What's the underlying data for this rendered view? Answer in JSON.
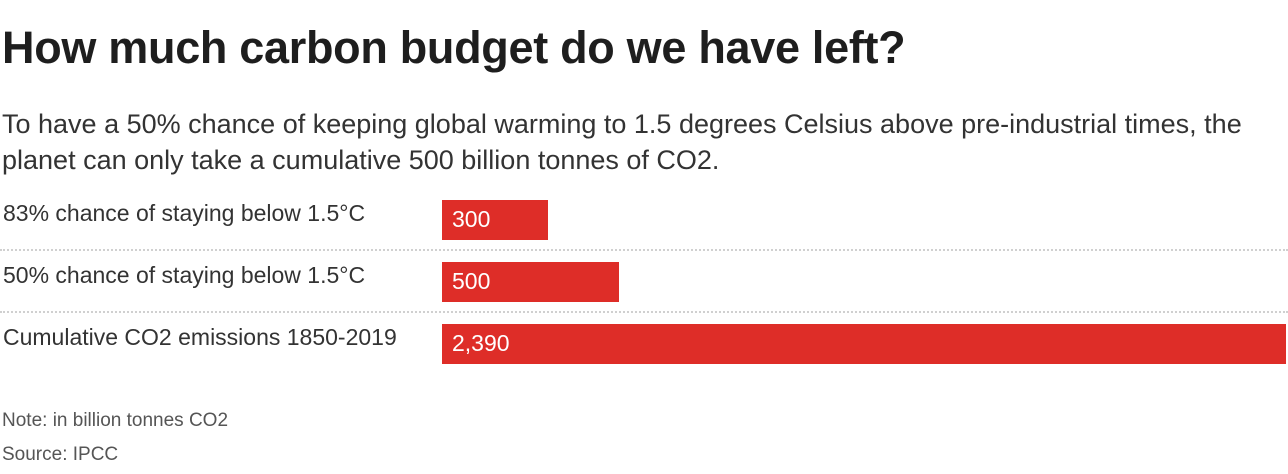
{
  "title": "How much carbon budget do we have left?",
  "subtitle": "To have a 50% chance of keeping global warming to 1.5 degrees Celsius above pre-industrial times, the planet can only take a cumulative 500 billion tonnes of CO2.",
  "chart_data": {
    "type": "bar",
    "orientation": "horizontal",
    "categories": [
      "83% chance of staying below 1.5°C",
      "50% chance of staying below 1.5°C",
      "Cumulative CO2 emissions 1850-2019"
    ],
    "values": [
      300,
      500,
      2390
    ],
    "value_labels": [
      "300",
      "500",
      "2,390"
    ],
    "xlim": [
      0,
      2390
    ],
    "grid": false,
    "bar_color": "#de2d28"
  },
  "note": "Note: in billion tonnes CO2",
  "source": "Source: IPCC"
}
